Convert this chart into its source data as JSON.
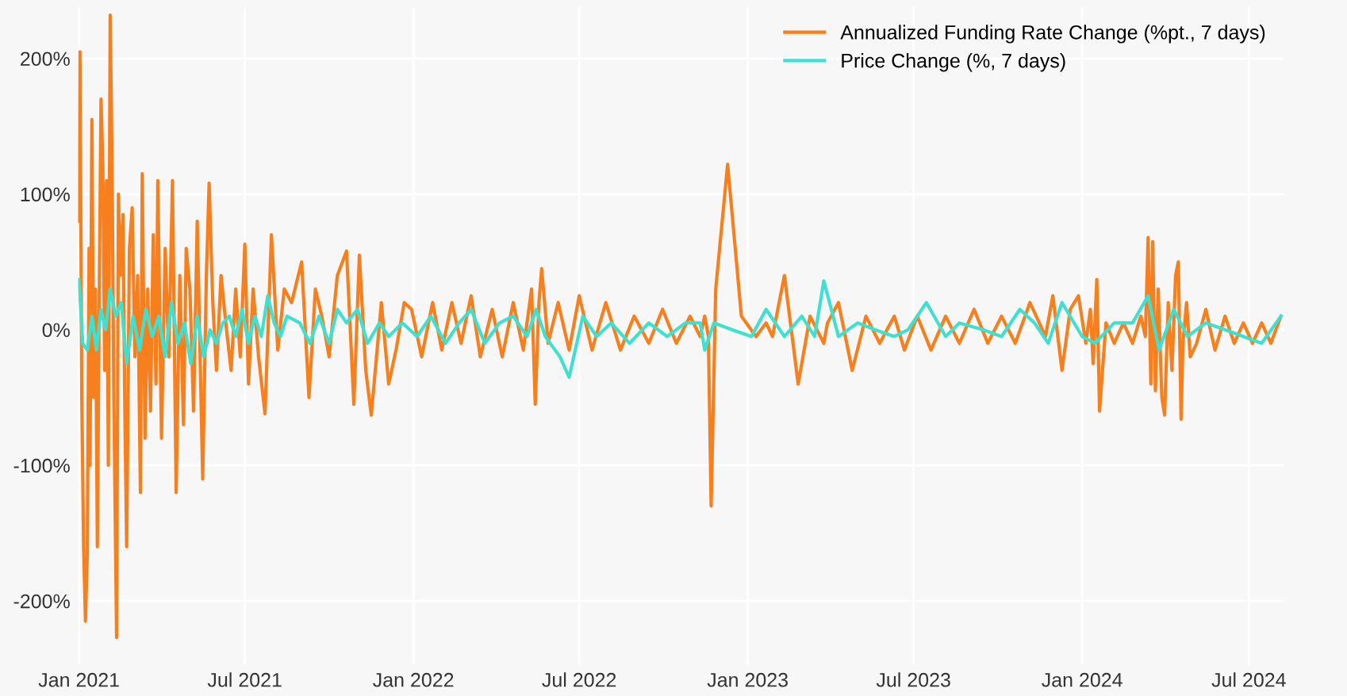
{
  "chart_data": {
    "type": "line",
    "series": [
      {
        "name": "Annualized Funding Rate Change (%pt., 7 days)",
        "color": "#f77f1e",
        "x": [
          "2021-01-01",
          "2021-01-02",
          "2021-01-04",
          "2021-01-06",
          "2021-01-08",
          "2021-01-10",
          "2021-01-12",
          "2021-01-13",
          "2021-01-15",
          "2021-01-17",
          "2021-01-19",
          "2021-01-21",
          "2021-01-23",
          "2021-01-25",
          "2021-01-27",
          "2021-01-29",
          "2021-01-31",
          "2021-02-02",
          "2021-02-04",
          "2021-02-06",
          "2021-02-08",
          "2021-02-11",
          "2021-02-13",
          "2021-02-15",
          "2021-02-18",
          "2021-02-20",
          "2021-02-22",
          "2021-02-25",
          "2021-02-28",
          "2021-03-03",
          "2021-03-06",
          "2021-03-09",
          "2021-03-11",
          "2021-03-14",
          "2021-03-17",
          "2021-03-20",
          "2021-03-23",
          "2021-03-26",
          "2021-03-28",
          "2021-04-01",
          "2021-04-05",
          "2021-04-09",
          "2021-04-13",
          "2021-04-17",
          "2021-04-21",
          "2021-04-25",
          "2021-04-28",
          "2021-05-02",
          "2021-05-06",
          "2021-05-10",
          "2021-05-16",
          "2021-05-20",
          "2021-05-23",
          "2021-05-27",
          "2021-05-31",
          "2021-06-05",
          "2021-06-11",
          "2021-06-16",
          "2021-06-21",
          "2021-06-26",
          "2021-07-01",
          "2021-07-05",
          "2021-07-10",
          "2021-07-16",
          "2021-07-23",
          "2021-07-30",
          "2021-08-06",
          "2021-08-13",
          "2021-08-21",
          "2021-09-01",
          "2021-09-09",
          "2021-09-16",
          "2021-09-23",
          "2021-10-01",
          "2021-10-10",
          "2021-10-20",
          "2021-10-28",
          "2021-11-03",
          "2021-11-10",
          "2021-11-16",
          "2021-11-27",
          "2021-12-05",
          "2021-12-13",
          "2021-12-22",
          "2021-12-30",
          "2022-01-10",
          "2022-01-22",
          "2022-02-01",
          "2022-02-12",
          "2022-02-22",
          "2022-03-05",
          "2022-03-15",
          "2022-03-28",
          "2022-04-08",
          "2022-04-20",
          "2022-05-01",
          "2022-05-10",
          "2022-05-14",
          "2022-05-18",
          "2022-05-21",
          "2022-05-28",
          "2022-06-08",
          "2022-06-20",
          "2022-07-01",
          "2022-07-15",
          "2022-07-30",
          "2022-08-15",
          "2022-08-30",
          "2022-09-15",
          "2022-09-30",
          "2022-10-15",
          "2022-10-30",
          "2022-11-10",
          "2022-11-15",
          "2022-11-19",
          "2022-11-22",
          "2022-11-27",
          "2022-12-10",
          "2022-12-25",
          "2023-01-10",
          "2023-01-21",
          "2023-01-28",
          "2023-02-10",
          "2023-02-25",
          "2023-03-10",
          "2023-03-25",
          "2023-03-29",
          "2023-04-10",
          "2023-04-25",
          "2023-05-10",
          "2023-05-25",
          "2023-06-10",
          "2023-06-21",
          "2023-07-05",
          "2023-07-20",
          "2023-08-05",
          "2023-08-20",
          "2023-09-05",
          "2023-09-20",
          "2023-10-05",
          "2023-10-20",
          "2023-11-05",
          "2023-11-22",
          "2023-11-30",
          "2023-12-10",
          "2023-12-19",
          "2023-12-28",
          "2024-01-05",
          "2024-01-10",
          "2024-01-13",
          "2024-01-17",
          "2024-01-20",
          "2024-01-27",
          "2024-02-05",
          "2024-02-15",
          "2024-02-25",
          "2024-03-05",
          "2024-03-10",
          "2024-03-13",
          "2024-03-16",
          "2024-03-18",
          "2024-03-21",
          "2024-03-24",
          "2024-03-28",
          "2024-03-31",
          "2024-04-04",
          "2024-04-08",
          "2024-04-12",
          "2024-04-15",
          "2024-04-18",
          "2024-04-20",
          "2024-04-24",
          "2024-04-28",
          "2024-05-05",
          "2024-05-15",
          "2024-05-25",
          "2024-06-05",
          "2024-06-15",
          "2024-06-25",
          "2024-07-05",
          "2024-07-15",
          "2024-07-25",
          "2024-08-05"
        ],
        "values": [
          80,
          205,
          -50,
          -160,
          -215,
          -165,
          60,
          -100,
          155,
          -50,
          30,
          -160,
          20,
          170,
          120,
          -30,
          110,
          -100,
          232,
          125,
          -50,
          -227,
          100,
          40,
          85,
          -60,
          -160,
          60,
          90,
          -20,
          40,
          -120,
          115,
          -80,
          30,
          -60,
          70,
          -40,
          110,
          -80,
          60,
          -20,
          110,
          -120,
          40,
          -70,
          60,
          30,
          -60,
          80,
          -110,
          40,
          108,
          20,
          -30,
          40,
          0,
          -30,
          30,
          -20,
          63,
          -40,
          30,
          -20,
          -62,
          70,
          -15,
          30,
          20,
          50,
          -50,
          30,
          10,
          -20,
          40,
          58,
          -55,
          55,
          -30,
          -63,
          20,
          -40,
          -15,
          20,
          15,
          -20,
          20,
          -15,
          20,
          -10,
          25,
          -20,
          15,
          -20,
          20,
          -15,
          30,
          -55,
          20,
          45,
          -10,
          20,
          -15,
          25,
          -15,
          20,
          -15,
          10,
          -10,
          15,
          -10,
          10,
          -5,
          10,
          -5,
          -130,
          30,
          122,
          10,
          -5,
          5,
          -5,
          40,
          -40,
          10,
          -10,
          5,
          20,
          -30,
          10,
          -10,
          10,
          -15,
          10,
          -15,
          10,
          -10,
          15,
          -10,
          10,
          -10,
          20,
          -5,
          25,
          -30,
          15,
          25,
          -10,
          15,
          -25,
          37,
          -60,
          5,
          -10,
          5,
          -10,
          10,
          -5,
          68,
          -40,
          65,
          -45,
          30,
          -50,
          -63,
          20,
          -30,
          40,
          50,
          -66,
          -10,
          20,
          -20,
          -10,
          15,
          -15,
          10,
          -10,
          5,
          -10,
          5,
          -10,
          10
        ]
      },
      {
        "name": "Price Change (%, 7 days)",
        "color": "#40e0d0",
        "x": [
          "2021-01-01",
          "2021-01-05",
          "2021-01-10",
          "2021-01-15",
          "2021-01-20",
          "2021-01-25",
          "2021-01-30",
          "2021-02-04",
          "2021-02-10",
          "2021-02-16",
          "2021-02-22",
          "2021-03-01",
          "2021-03-08",
          "2021-03-15",
          "2021-03-22",
          "2021-03-29",
          "2021-04-05",
          "2021-04-12",
          "2021-04-19",
          "2021-04-26",
          "2021-05-03",
          "2021-05-10",
          "2021-05-17",
          "2021-05-24",
          "2021-05-31",
          "2021-06-07",
          "2021-06-14",
          "2021-06-21",
          "2021-06-28",
          "2021-07-05",
          "2021-07-12",
          "2021-07-19",
          "2021-07-26",
          "2021-08-02",
          "2021-08-09",
          "2021-08-16",
          "2021-08-30",
          "2021-09-10",
          "2021-09-20",
          "2021-10-01",
          "2021-10-10",
          "2021-10-20",
          "2021-11-01",
          "2021-11-12",
          "2021-11-25",
          "2021-12-05",
          "2021-12-20",
          "2022-01-05",
          "2022-01-20",
          "2022-02-05",
          "2022-02-20",
          "2022-03-05",
          "2022-03-20",
          "2022-04-05",
          "2022-04-20",
          "2022-05-05",
          "2022-05-15",
          "2022-05-25",
          "2022-06-10",
          "2022-06-20",
          "2022-07-05",
          "2022-07-20",
          "2022-08-05",
          "2022-08-25",
          "2022-09-15",
          "2022-10-05",
          "2022-10-25",
          "2022-11-10",
          "2022-11-15",
          "2022-11-25",
          "2022-12-15",
          "2023-01-05",
          "2023-01-21",
          "2023-02-10",
          "2023-03-01",
          "2023-03-15",
          "2023-03-25",
          "2023-04-10",
          "2023-05-01",
          "2023-05-20",
          "2023-06-10",
          "2023-06-25",
          "2023-07-15",
          "2023-08-05",
          "2023-08-20",
          "2023-09-15",
          "2023-10-05",
          "2023-10-25",
          "2023-11-10",
          "2023-11-25",
          "2023-12-10",
          "2024-01-01",
          "2024-01-15",
          "2024-02-05",
          "2024-02-25",
          "2024-03-13",
          "2024-03-25",
          "2024-04-10",
          "2024-04-25",
          "2024-05-15",
          "2024-06-05",
          "2024-06-25",
          "2024-07-15",
          "2024-08-05"
        ],
        "values": [
          37,
          -10,
          -15,
          10,
          -15,
          15,
          0,
          30,
          10,
          20,
          -25,
          10,
          -15,
          15,
          -5,
          10,
          -20,
          20,
          -10,
          5,
          -25,
          10,
          -20,
          0,
          -10,
          5,
          10,
          -5,
          15,
          -10,
          10,
          -5,
          25,
          5,
          -5,
          10,
          5,
          -10,
          10,
          -10,
          15,
          5,
          15,
          -10,
          5,
          -5,
          5,
          -5,
          10,
          -10,
          5,
          15,
          -10,
          5,
          10,
          -5,
          15,
          -5,
          -20,
          -35,
          10,
          -5,
          5,
          -10,
          5,
          -5,
          5,
          5,
          -15,
          5,
          0,
          -5,
          15,
          -5,
          10,
          -5,
          36,
          -5,
          5,
          0,
          -5,
          0,
          20,
          -5,
          5,
          0,
          -5,
          15,
          5,
          -10,
          20,
          -5,
          -10,
          5,
          5,
          25,
          -15,
          15,
          -5,
          5,
          0,
          -5,
          -10,
          10
        ]
      }
    ],
    "xlim": [
      "2020-12-31",
      "2024-08-08"
    ],
    "xticks": [
      {
        "value": "2021-01-01",
        "label": "Jan 2021"
      },
      {
        "value": "2021-07-01",
        "label": "Jul 2021"
      },
      {
        "value": "2022-01-01",
        "label": "Jan 2022"
      },
      {
        "value": "2022-07-01",
        "label": "Jul 2022"
      },
      {
        "value": "2023-01-01",
        "label": "Jan 2023"
      },
      {
        "value": "2023-07-01",
        "label": "Jul 2023"
      },
      {
        "value": "2024-01-01",
        "label": "Jan 2024"
      },
      {
        "value": "2024-07-01",
        "label": "Jul 2024"
      }
    ],
    "ylim": [
      -247,
      238
    ],
    "yticks": [
      {
        "value": -200,
        "label": "-200%"
      },
      {
        "value": -100,
        "label": "-100%"
      },
      {
        "value": 0,
        "label": "0%"
      },
      {
        "value": 100,
        "label": "100%"
      },
      {
        "value": 200,
        "label": "200%"
      }
    ],
    "grid": true,
    "legend": "top right"
  }
}
